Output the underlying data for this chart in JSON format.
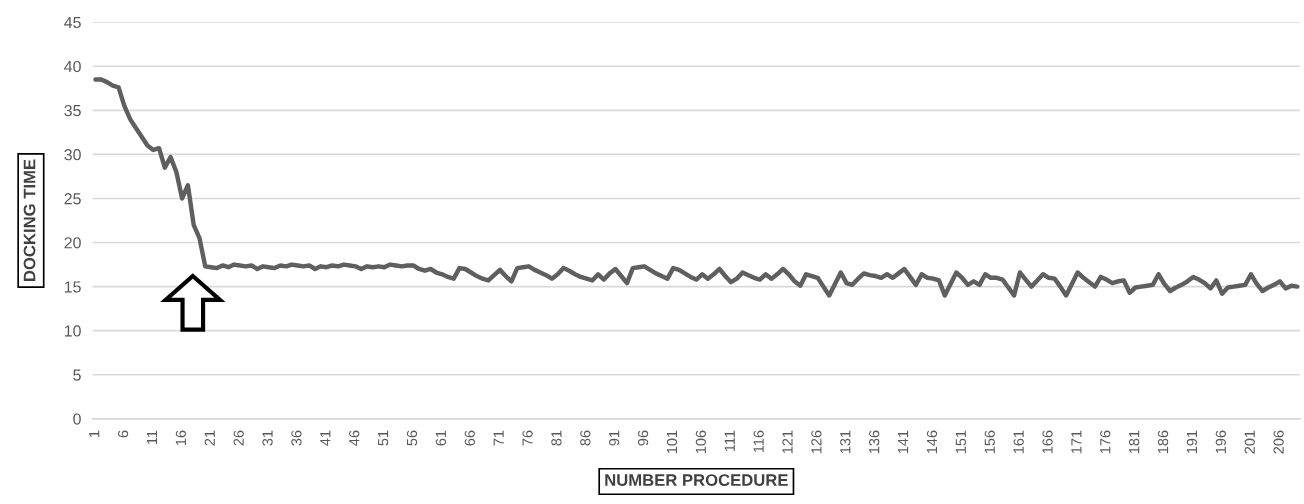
{
  "chart_data": {
    "type": "line",
    "xlabel": "NUMBER PROCEDURE",
    "ylabel": "DOCKING TIME",
    "categories": [
      "1",
      null,
      null,
      null,
      null,
      "6",
      null,
      null,
      null,
      null,
      "11",
      null,
      null,
      null,
      null,
      "16",
      null,
      null,
      null,
      null,
      "21",
      null,
      null,
      null,
      null,
      "26",
      null,
      null,
      null,
      null,
      "31",
      null,
      null,
      null,
      null,
      "36",
      null,
      null,
      null,
      null,
      "41",
      null,
      null,
      null,
      null,
      "46",
      null,
      null,
      null,
      null,
      "51",
      null,
      null,
      null,
      null,
      "56",
      null,
      null,
      null,
      null,
      "61",
      null,
      null,
      null,
      null,
      "66",
      null,
      null,
      null,
      null,
      "71",
      null,
      null,
      null,
      null,
      "76",
      null,
      null,
      null,
      null,
      "81",
      null,
      null,
      null,
      null,
      "86",
      null,
      null,
      null,
      null,
      "91",
      null,
      null,
      null,
      null,
      "96",
      null,
      null,
      null,
      null,
      "101",
      null,
      null,
      null,
      null,
      "106",
      null,
      null,
      null,
      null,
      "111",
      null,
      null,
      null,
      null,
      "116",
      null,
      null,
      null,
      null,
      "121",
      null,
      null,
      null,
      null,
      "126",
      null,
      null,
      null,
      null,
      "131",
      null,
      null,
      null,
      null,
      "136",
      null,
      null,
      null,
      null,
      "141",
      null,
      null,
      null,
      null,
      "146",
      null,
      null,
      null,
      null,
      "151",
      null,
      null,
      null,
      null,
      "156",
      null,
      null,
      null,
      null,
      "161",
      null,
      null,
      null,
      null,
      "166",
      null,
      null,
      null,
      null,
      "171",
      null,
      null,
      null,
      null,
      "176",
      null,
      null,
      null,
      null,
      "181",
      null,
      null,
      null,
      null,
      "186",
      null,
      null,
      null,
      null,
      "191",
      null,
      null,
      null,
      null,
      "196",
      null,
      null,
      null,
      null,
      "201",
      null,
      null,
      null,
      null,
      "206",
      null,
      null,
      null
    ],
    "series": [
      {
        "color": "#5f5f5f",
        "values": [
          38.5,
          38.5,
          38.2,
          37.8,
          37.6,
          35.5,
          34,
          33,
          32,
          31,
          30.5,
          30.7,
          28.5,
          29.7,
          28,
          25,
          26.5,
          22,
          20.5,
          17.3,
          17.2,
          17.1,
          17.4,
          17.2,
          17.5,
          17.4,
          17.3,
          17.4,
          17.0,
          17.3,
          17.2,
          17.1,
          17.4,
          17.3,
          17.5,
          17.4,
          17.3,
          17.4,
          17.0,
          17.3,
          17.2,
          17.4,
          17.3,
          17.5,
          17.4,
          17.3,
          17.0,
          17.3,
          17.2,
          17.3,
          17.2,
          17.5,
          17.4,
          17.3,
          17.4,
          17.4,
          17.0,
          16.8,
          17.0,
          16.6,
          16.4,
          16.1,
          15.9,
          17.1,
          17.0,
          16.6,
          16.2,
          15.9,
          15.7,
          16.3,
          16.9,
          16.2,
          15.6,
          17.1,
          17.2,
          17.3,
          16.9,
          16.6,
          16.3,
          15.9,
          16.4,
          17.1,
          16.8,
          16.4,
          16.1,
          15.9,
          15.7,
          16.4,
          15.8,
          16.5,
          17.0,
          16.2,
          15.4,
          17.1,
          17.2,
          17.3,
          16.9,
          16.5,
          16.2,
          15.9,
          17.1,
          16.9,
          16.5,
          16.1,
          15.8,
          16.4,
          15.9,
          16.4,
          17.0,
          16.2,
          15.5,
          15.9,
          16.6,
          16.3,
          16.0,
          15.8,
          16.4,
          15.9,
          16.4,
          17.0,
          16.4,
          15.6,
          15.1,
          16.4,
          16.2,
          16.0,
          15.0,
          14.0,
          15.3,
          16.6,
          15.4,
          15.2,
          15.9,
          16.5,
          16.3,
          16.2,
          16.0,
          16.4,
          16.0,
          16.5,
          17.0,
          16.1,
          15.2,
          16.4,
          16.0,
          15.9,
          15.7,
          14.0,
          15.3,
          16.6,
          16.0,
          15.2,
          15.6,
          15.2,
          16.4,
          16.0,
          16.0,
          15.8,
          14.9,
          14.0,
          16.6,
          15.8,
          15.0,
          15.7,
          16.4,
          16.0,
          15.9,
          15.0,
          14.0,
          15.3,
          16.6,
          16.0,
          15.5,
          15.0,
          16.1,
          15.8,
          15.4,
          15.6,
          15.7,
          14.3,
          14.9,
          15.0,
          15.1,
          15.2,
          16.4,
          15.3,
          14.5,
          14.9,
          15.2,
          15.6,
          16.1,
          15.8,
          15.4,
          14.8,
          15.7,
          14.2,
          14.9,
          15.0,
          15.1,
          15.2,
          16.4,
          15.3,
          14.5,
          14.9,
          15.2,
          15.6,
          14.8,
          15.1,
          15.0
        ]
      }
    ],
    "ylim": [
      0,
      45
    ],
    "yticks": [
      0,
      5,
      10,
      15,
      20,
      25,
      30,
      35,
      40,
      45
    ],
    "grid": "y",
    "marker": "none",
    "line_style": "solid"
  }
}
